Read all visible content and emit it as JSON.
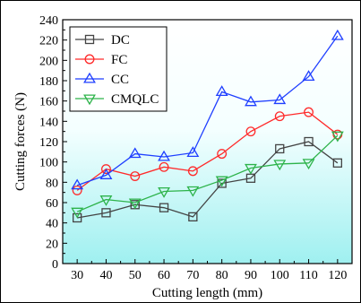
{
  "chart_data": {
    "type": "line",
    "title": "",
    "xlabel": "Cutting length (mm)",
    "ylabel": "Cutting forces (N)",
    "x": [
      30,
      40,
      50,
      60,
      70,
      80,
      90,
      100,
      110,
      120
    ],
    "xlim": [
      25,
      125
    ],
    "ylim": [
      0,
      240
    ],
    "yticks": [
      0,
      20,
      40,
      60,
      80,
      100,
      120,
      140,
      160,
      180,
      200,
      220,
      240
    ],
    "xticks": [
      30,
      40,
      50,
      60,
      70,
      80,
      90,
      100,
      110,
      120
    ],
    "grid": false,
    "legend_position": "top-left",
    "background": "gradient white to cyan (bottom)",
    "series": [
      {
        "name": "DC",
        "color": "#444444",
        "marker": "square",
        "values": [
          45,
          50,
          58,
          55,
          46,
          79,
          84,
          113,
          120,
          99
        ]
      },
      {
        "name": "FC",
        "color": "#ff2a2a",
        "marker": "circle",
        "values": [
          72,
          93,
          86,
          95,
          91,
          108,
          130,
          145,
          149,
          127
        ]
      },
      {
        "name": "CC",
        "color": "#1f3fff",
        "marker": "triangle-up",
        "values": [
          77,
          87,
          108,
          105,
          109,
          169,
          159,
          161,
          184,
          224
        ]
      },
      {
        "name": "CMQLC",
        "color": "#2db34a",
        "marker": "triangle-down",
        "values": [
          51,
          63,
          60,
          71,
          72,
          82,
          94,
          98,
          99,
          126
        ]
      }
    ]
  }
}
